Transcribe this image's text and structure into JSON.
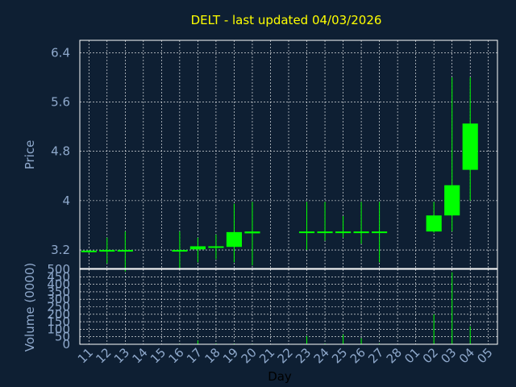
{
  "chart_data": {
    "type": "candlestick",
    "title": "DELT - last updated 04/03/2026",
    "xlabel": "Day",
    "colors": {
      "background": "#0e1f33",
      "candle": "#00ff00",
      "title": "#ffff00",
      "tick": "#8fa9cc",
      "grid": "#ffffff"
    },
    "x_ticks": [
      "11",
      "12",
      "13",
      "14",
      "15",
      "16",
      "17",
      "18",
      "19",
      "20",
      "21",
      "22",
      "23",
      "24",
      "25",
      "26",
      "27",
      "28",
      "01",
      "02",
      "03",
      "04",
      "05"
    ],
    "price_panel": {
      "ylabel": "Price",
      "ylim": [
        2.9,
        6.6
      ],
      "y_ticks": [
        "3.2",
        "4",
        "4.8",
        "5.6",
        "6.4"
      ],
      "y_tick_values": [
        3.2,
        4.0,
        4.8,
        5.6,
        6.4
      ],
      "grid": true
    },
    "volume_panel": {
      "ylabel": "Volume (0000)",
      "ylim": [
        0,
        500
      ],
      "y_ticks": [
        "0",
        "50",
        "100",
        "150",
        "200",
        "250",
        "300",
        "350",
        "400",
        "450",
        "500"
      ],
      "y_tick_values": [
        0,
        50,
        100,
        150,
        200,
        250,
        300,
        350,
        400,
        450,
        500
      ],
      "grid": true
    },
    "candles": [
      {
        "day": "11",
        "open": 3.17,
        "high": 3.2,
        "low": 3.15,
        "close": 3.19,
        "volume": 2
      },
      {
        "day": "12",
        "open": 3.18,
        "high": 3.4,
        "low": 2.98,
        "close": 3.2,
        "volume": 3
      },
      {
        "day": "13",
        "open": 3.19,
        "high": 3.5,
        "low": 2.85,
        "close": 3.2,
        "volume": 3
      },
      {
        "day": "16",
        "open": 3.18,
        "high": 3.5,
        "low": 2.9,
        "close": 3.2,
        "volume": 4
      },
      {
        "day": "17",
        "open": 3.21,
        "high": 3.4,
        "low": 3.0,
        "close": 3.26,
        "volume": 25
      },
      {
        "day": "18",
        "open": 3.24,
        "high": 3.45,
        "low": 3.05,
        "close": 3.26,
        "volume": 6
      },
      {
        "day": "19",
        "open": 3.25,
        "high": 3.95,
        "low": 3.0,
        "close": 3.49,
        "volume": 5
      },
      {
        "day": "20",
        "open": 3.47,
        "high": 3.98,
        "low": 2.95,
        "close": 3.5,
        "volume": 4
      },
      {
        "day": "23",
        "open": 3.48,
        "high": 3.98,
        "low": 3.2,
        "close": 3.5,
        "volume": 55
      },
      {
        "day": "24",
        "open": 3.48,
        "high": 3.98,
        "low": 3.35,
        "close": 3.5,
        "volume": 6
      },
      {
        "day": "25",
        "open": 3.48,
        "high": 3.75,
        "low": 3.4,
        "close": 3.5,
        "volume": 65
      },
      {
        "day": "26",
        "open": 3.48,
        "high": 3.98,
        "low": 3.3,
        "close": 3.5,
        "volume": 40
      },
      {
        "day": "27",
        "open": 3.48,
        "high": 3.98,
        "low": 3.0,
        "close": 3.5,
        "volume": 6
      },
      {
        "day": "02",
        "open": 3.5,
        "high": 3.98,
        "low": 3.48,
        "close": 3.76,
        "volume": 200
      },
      {
        "day": "03",
        "open": 3.76,
        "high": 6.0,
        "low": 3.5,
        "close": 4.25,
        "volume": 480
      },
      {
        "day": "04",
        "open": 4.5,
        "high": 6.0,
        "low": 4.0,
        "close": 5.25,
        "volume": 120
      }
    ]
  }
}
